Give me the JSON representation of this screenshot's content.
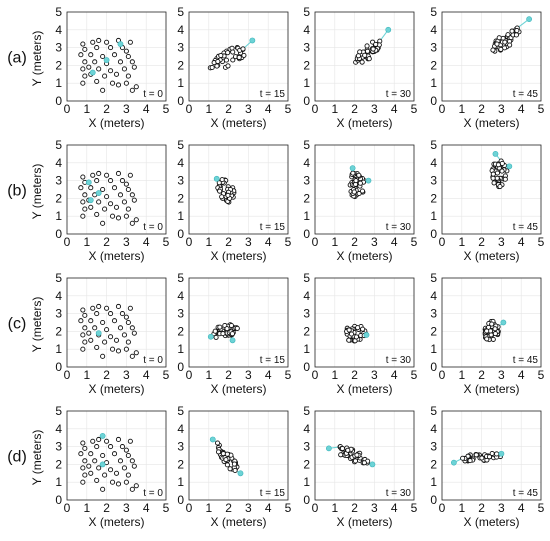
{
  "chart_data": {
    "type": "scatter",
    "layout": "4x4 small multiples",
    "rows": [
      "(a)",
      "(b)",
      "(c)",
      "(d)"
    ],
    "times": [
      "t = 0",
      "t = 15",
      "t = 30",
      "t = 45"
    ],
    "xlabel": "X (meters)",
    "ylabel": "Y (meters)",
    "xlim": [
      0,
      5
    ],
    "ylim": [
      0,
      5
    ],
    "xticks": [
      "0",
      "1",
      "2",
      "3",
      "4",
      "5"
    ],
    "yticks": [
      "0",
      "1",
      "2",
      "3",
      "4",
      "5"
    ],
    "grid": true,
    "agent_color": "#111111",
    "leader_color": "#6dd3d6",
    "initial_agents": [
      [
        0.8,
        3.2
      ],
      [
        1.3,
        3.3
      ],
      [
        1.6,
        3.4
      ],
      [
        2.0,
        3.3
      ],
      [
        2.6,
        3.4
      ],
      [
        3.2,
        3.3
      ],
      [
        0.9,
        2.9
      ],
      [
        1.5,
        3.0
      ],
      [
        2.2,
        3.0
      ],
      [
        2.8,
        3.0
      ],
      [
        3.0,
        2.8
      ],
      [
        0.7,
        2.6
      ],
      [
        1.2,
        2.6
      ],
      [
        1.8,
        2.5
      ],
      [
        2.4,
        2.6
      ],
      [
        3.1,
        2.5
      ],
      [
        0.9,
        2.2
      ],
      [
        1.4,
        2.2
      ],
      [
        2.0,
        2.1
      ],
      [
        2.7,
        2.2
      ],
      [
        3.3,
        2.2
      ],
      [
        0.8,
        1.8
      ],
      [
        1.6,
        1.8
      ],
      [
        2.2,
        1.7
      ],
      [
        2.9,
        1.8
      ],
      [
        3.4,
        1.9
      ],
      [
        0.9,
        1.4
      ],
      [
        1.2,
        1.5
      ],
      [
        1.9,
        1.4
      ],
      [
        2.5,
        1.5
      ],
      [
        3.1,
        1.4
      ],
      [
        0.8,
        1.0
      ],
      [
        1.5,
        1.1
      ],
      [
        2.3,
        1.0
      ],
      [
        3.0,
        1.0
      ],
      [
        3.5,
        0.8
      ],
      [
        1.8,
        0.6
      ],
      [
        2.6,
        0.9
      ],
      [
        3.3,
        0.6
      ],
      [
        1.1,
        1.9
      ]
    ],
    "panels": [
      {
        "row": "(a)",
        "time": "t = 0",
        "cluster": null,
        "leaders": [
          [
            1.3,
            1.6
          ],
          [
            2.0,
            2.3
          ],
          [
            2.7,
            3.2
          ]
        ]
      },
      {
        "row": "(a)",
        "time": "t = 15",
        "cluster": {
          "cx": 2.0,
          "cy": 2.4,
          "angle": 35,
          "a": 1.1,
          "b": 0.45
        },
        "leaders": [
          [
            3.2,
            3.4
          ]
        ]
      },
      {
        "row": "(a)",
        "time": "t = 30",
        "cluster": {
          "cx": 2.7,
          "cy": 2.8,
          "angle": 45,
          "a": 0.9,
          "b": 0.35
        },
        "leaders": [
          [
            3.7,
            4.0
          ]
        ]
      },
      {
        "row": "(a)",
        "time": "t = 45",
        "cluster": {
          "cx": 3.2,
          "cy": 3.4,
          "angle": 45,
          "a": 0.95,
          "b": 0.35
        },
        "leaders": [
          [
            4.4,
            4.6
          ]
        ]
      },
      {
        "row": "(b)",
        "time": "t = 0",
        "cluster": null,
        "leaders": [
          [
            1.1,
            2.9
          ],
          [
            1.6,
            2.3
          ],
          [
            1.2,
            1.9
          ]
        ]
      },
      {
        "row": "(b)",
        "time": "t = 15",
        "cluster": {
          "cx": 1.9,
          "cy": 2.4,
          "angle": -70,
          "a": 0.75,
          "b": 0.4
        },
        "leaders": [
          [
            1.4,
            3.1
          ]
        ]
      },
      {
        "row": "(b)",
        "time": "t = 30",
        "cluster": {
          "cx": 2.1,
          "cy": 2.8,
          "angle": 90,
          "a": 0.75,
          "b": 0.4
        },
        "leaders": [
          [
            1.9,
            3.7
          ],
          [
            2.7,
            3.0
          ]
        ]
      },
      {
        "row": "(b)",
        "time": "t = 45",
        "cluster": {
          "cx": 2.9,
          "cy": 3.4,
          "angle": 90,
          "a": 0.75,
          "b": 0.4
        },
        "leaders": [
          [
            2.7,
            4.5
          ],
          [
            3.4,
            3.8
          ]
        ]
      },
      {
        "row": "(c)",
        "time": "t = 0",
        "cluster": null,
        "leaders": [
          [
            1.6,
            1.9
          ]
        ]
      },
      {
        "row": "(c)",
        "time": "t = 15",
        "cluster": {
          "cx": 1.8,
          "cy": 2.0,
          "angle": 15,
          "a": 0.7,
          "b": 0.35
        },
        "leaders": [
          [
            1.1,
            1.7
          ],
          [
            2.2,
            1.5
          ]
        ]
      },
      {
        "row": "(c)",
        "time": "t = 30",
        "cluster": {
          "cx": 2.0,
          "cy": 1.9,
          "angle": 10,
          "a": 0.55,
          "b": 0.45
        },
        "leaders": [
          [
            2.6,
            1.8
          ]
        ]
      },
      {
        "row": "(c)",
        "time": "t = 45",
        "cluster": {
          "cx": 2.5,
          "cy": 2.0,
          "angle": 80,
          "a": 0.6,
          "b": 0.35
        },
        "leaders": [
          [
            3.1,
            2.5
          ]
        ]
      },
      {
        "row": "(d)",
        "time": "t = 0",
        "cluster": null,
        "leaders": [
          [
            1.8,
            3.6
          ],
          [
            1.8,
            2.0
          ]
        ]
      },
      {
        "row": "(d)",
        "time": "t = 15",
        "cluster": {
          "cx": 1.9,
          "cy": 2.4,
          "angle": -60,
          "a": 1.0,
          "b": 0.3
        },
        "leaders": [
          [
            1.2,
            3.4
          ],
          [
            2.6,
            1.5
          ]
        ]
      },
      {
        "row": "(d)",
        "time": "t = 30",
        "cluster": {
          "cx": 1.9,
          "cy": 2.5,
          "angle": -25,
          "a": 1.0,
          "b": 0.3
        },
        "leaders": [
          [
            0.7,
            2.9
          ],
          [
            2.9,
            2.0
          ]
        ]
      },
      {
        "row": "(d)",
        "time": "t = 45",
        "cluster": {
          "cx": 1.9,
          "cy": 2.4,
          "angle": 5,
          "a": 1.1,
          "b": 0.2
        },
        "leaders": [
          [
            0.6,
            2.1
          ],
          [
            3.0,
            2.6
          ]
        ]
      }
    ]
  }
}
